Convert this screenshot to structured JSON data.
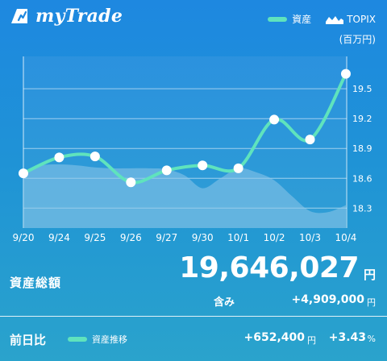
{
  "app": {
    "title": "myTrade"
  },
  "legend": {
    "assets": "資産",
    "topix": "TOPIX"
  },
  "unit": "(百万円)",
  "colors": {
    "asset_line": "#5fe3bd",
    "topix_area": "#8ec6ea",
    "grid": "#ffffff"
  },
  "chart_data": {
    "type": "line",
    "categories": [
      "9/20",
      "9/24",
      "9/25",
      "9/26",
      "9/27",
      "9/30",
      "10/1",
      "10/2",
      "10/3",
      "10/4"
    ],
    "series": [
      {
        "name": "資産",
        "values": [
          18.65,
          18.81,
          18.82,
          18.56,
          18.68,
          18.73,
          18.7,
          19.19,
          18.99,
          19.65
        ]
      }
    ],
    "ylim": [
      18.1,
      19.8
    ],
    "yticks": [
      18.3,
      18.6,
      18.9,
      19.2,
      19.5
    ],
    "ytick_labels": [
      "18.3",
      "18.6",
      "18.9",
      "19.2",
      "19.5"
    ],
    "background_area": {
      "name": "TOPIX",
      "x": [
        0,
        0.5,
        1,
        1.5,
        2,
        2.5,
        3,
        3.5,
        4,
        4.5,
        5,
        5.5,
        6,
        6.5,
        7,
        7.5,
        8,
        8.5,
        9
      ],
      "values": [
        18.67,
        18.73,
        18.74,
        18.73,
        18.71,
        18.7,
        18.7,
        18.7,
        18.69,
        18.63,
        18.5,
        18.6,
        18.7,
        18.66,
        18.58,
        18.42,
        18.27,
        18.26,
        18.33
      ]
    }
  },
  "summary": {
    "total_label": "資産総額",
    "total_value": "19,646,027",
    "total_unit": "円",
    "gain_label": "含み",
    "gain_value": "+4,909,000",
    "gain_unit": "円"
  },
  "bottom": {
    "daychange_label": "前日比",
    "series_label": "資産推移",
    "change_value": "+652,400",
    "change_unit": "円",
    "change_pct": "+3.43",
    "pct_unit": "%"
  }
}
